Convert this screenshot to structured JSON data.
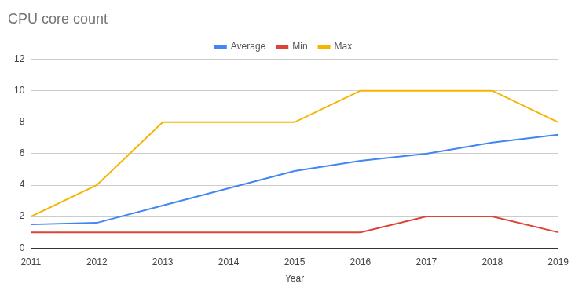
{
  "chart_data": {
    "type": "line",
    "title": "CPU core count",
    "x_label": "Year",
    "categories": [
      "2011",
      "2012",
      "2013",
      "2014",
      "2015",
      "2016",
      "2017",
      "2018",
      "2019"
    ],
    "series": [
      {
        "name": "Average",
        "color": "#4285f4",
        "values": [
          1.5,
          1.6,
          2.7,
          3.8,
          4.9,
          5.55,
          6.0,
          6.7,
          7.2
        ]
      },
      {
        "name": "Min",
        "color": "#db4437",
        "values": [
          1,
          1,
          1,
          1,
          1,
          1,
          2,
          2,
          1
        ]
      },
      {
        "name": "Max",
        "color": "#f4b400",
        "values": [
          2,
          4,
          8,
          8,
          8,
          10,
          10,
          10,
          8
        ]
      }
    ],
    "ylim": [
      0,
      12
    ],
    "yticks": [
      0,
      2,
      4,
      6,
      8,
      10,
      12
    ],
    "grid": true,
    "legend": "top"
  }
}
